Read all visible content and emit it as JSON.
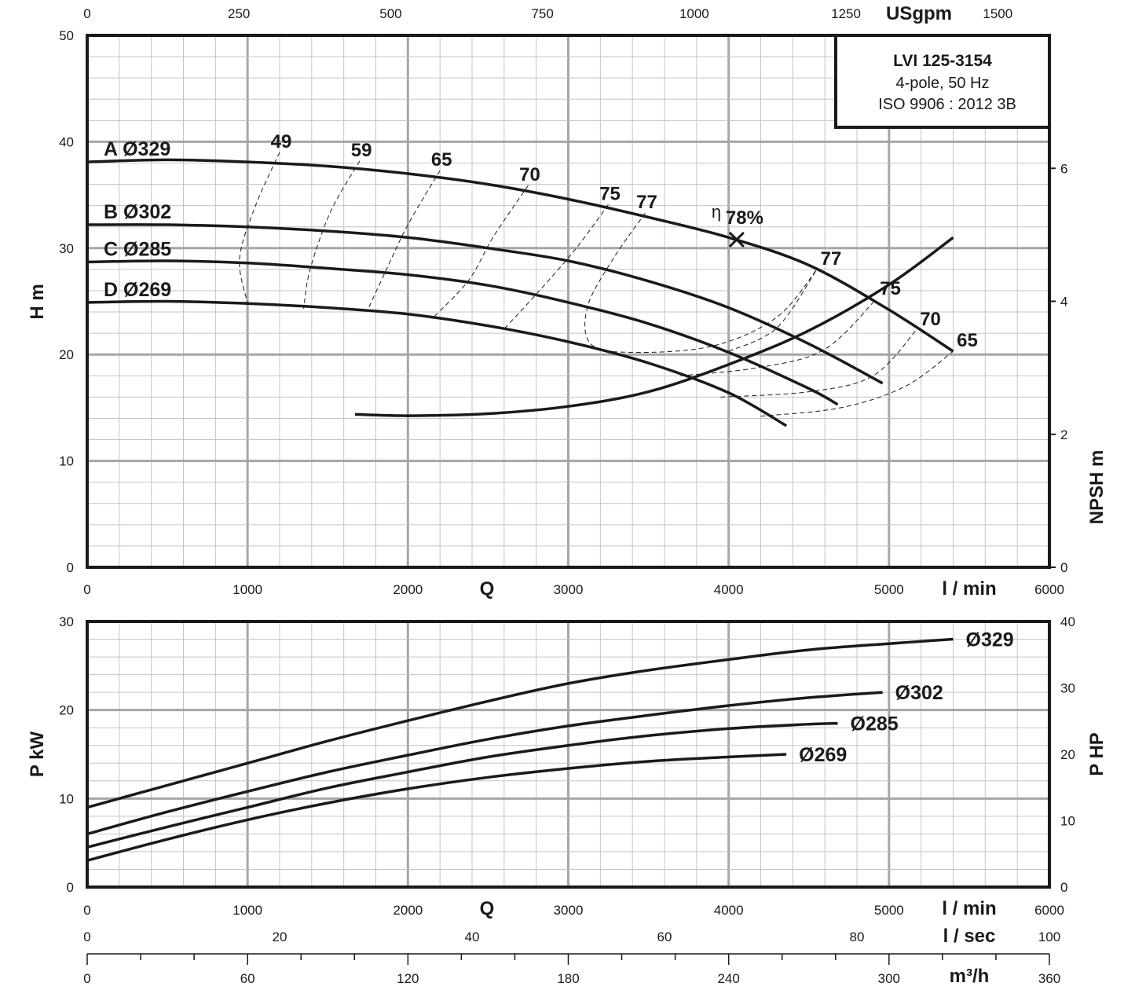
{
  "model": {
    "title": "LVI 125-3154",
    "line1": "4-pole, 50 Hz",
    "line2": "ISO 9906 : 2012 3B"
  },
  "colors": {
    "ink": "#1a1a1a",
    "major_grid": "#a6a6a6",
    "minor_grid": "#c4c4c4"
  },
  "chart_data": [
    {
      "type": "line",
      "name": "head",
      "xlabel": "Q",
      "xunit": "l / min",
      "x_range": [
        0,
        6000
      ],
      "ylabel": "H m",
      "y_range": [
        0,
        50
      ],
      "y2label": "NPSH m",
      "y2_range": [
        0,
        8
      ],
      "y2_ticks": [
        0,
        2,
        4,
        6
      ],
      "top_axis": {
        "unit": "USgpm",
        "ticks": [
          0,
          250,
          500,
          750,
          1000,
          1250,
          1500
        ]
      },
      "x_ticks": [
        0,
        1000,
        2000,
        3000,
        4000,
        5000,
        6000
      ],
      "y_ticks": [
        0,
        10,
        20,
        30,
        40,
        50
      ],
      "series": [
        {
          "name": "A Ø329",
          "x": [
            0,
            500,
            1000,
            1500,
            2000,
            2500,
            3000,
            3500,
            4000,
            4500,
            5000,
            5400
          ],
          "y": [
            38.1,
            38.3,
            38.1,
            37.7,
            37.0,
            36.0,
            34.6,
            32.9,
            31.0,
            28.4,
            24.2,
            20.3
          ]
        },
        {
          "name": "B Ø302",
          "x": [
            0,
            500,
            1000,
            1500,
            2000,
            2500,
            3000,
            3500,
            4000,
            4500,
            4960
          ],
          "y": [
            32.2,
            32.2,
            32.0,
            31.6,
            31.0,
            30.0,
            28.8,
            26.9,
            24.4,
            21.0,
            17.3
          ]
        },
        {
          "name": "C Ø285",
          "x": [
            0,
            500,
            1000,
            1500,
            2000,
            2500,
            3000,
            3500,
            4000,
            4500,
            4680
          ],
          "y": [
            28.7,
            28.8,
            28.6,
            28.1,
            27.5,
            26.5,
            24.9,
            22.9,
            20.2,
            16.8,
            15.3
          ]
        },
        {
          "name": "D Ø269",
          "x": [
            0,
            500,
            1000,
            1500,
            2000,
            2500,
            3000,
            3500,
            4000,
            4360
          ],
          "y": [
            24.9,
            25.0,
            24.8,
            24.4,
            23.8,
            22.7,
            21.2,
            19.2,
            16.4,
            13.3
          ]
        }
      ],
      "npsh": {
        "x": [
          1670,
          2000,
          2500,
          3000,
          3500,
          4000,
          4500,
          5000,
          5400
        ],
        "y": [
          2.3,
          2.28,
          2.31,
          2.42,
          2.64,
          3.05,
          3.56,
          4.25,
          4.96
        ]
      },
      "efficiency": {
        "symbol": "η",
        "best": {
          "label": "78%",
          "x": 4050,
          "y": 30.8
        },
        "contours": [
          {
            "label": "49",
            "x": [
              1200,
              1050,
              950,
              1000
            ],
            "y": [
              39.0,
              34.0,
              29.0,
              24.8
            ]
          },
          {
            "label": "59",
            "x": [
              1700,
              1520,
              1390,
              1350
            ],
            "y": [
              38.2,
              33.5,
              28.0,
              24.3
            ]
          },
          {
            "label": "65",
            "x": [
              2200,
              2000,
              1860,
              1750
            ],
            "y": [
              37.3,
              32.2,
              27.8,
              24.2
            ]
          },
          {
            "label": "70",
            "x": [
              2750,
              2530,
              2380,
              2160
            ],
            "y": [
              35.9,
              31.0,
              27.0,
              23.5
            ]
          },
          {
            "label": "75",
            "x": [
              3250,
              3050,
              2820,
              2600
            ],
            "y": [
              34.1,
              30.0,
              26.0,
              22.4
            ]
          },
          {
            "label": "77",
            "x": [
              3480,
              3280,
              3120,
              3140,
              3400,
              3900,
              4300,
              4550
            ],
            "y": [
              33.3,
              29.0,
              24.5,
              21.0,
              20.2,
              20.8,
              23.5,
              28.0
            ]
          }
        ],
        "right_labels": [
          {
            "label": "77",
            "x": 4550,
            "y": 28.0
          },
          {
            "label": "75",
            "x": 4920,
            "y": 25.2
          },
          {
            "label": "70",
            "x": 5170,
            "y": 22.3
          },
          {
            "label": "65",
            "x": 5400,
            "y": 20.3
          }
        ],
        "right_lines": [
          {
            "x": [
              4000,
              4300,
              4550
            ],
            "y": [
              20.3,
              22.5,
              28.0
            ]
          },
          {
            "x": [
              3700,
              4200,
              4600,
              4920
            ],
            "y": [
              18.0,
              18.8,
              20.5,
              25.2
            ]
          },
          {
            "x": [
              3950,
              4500,
              4900,
              5170
            ],
            "y": [
              16.0,
              16.5,
              18.0,
              22.3
            ]
          },
          {
            "x": [
              4200,
              4700,
              5100,
              5400
            ],
            "y": [
              14.2,
              15.0,
              17.0,
              20.3
            ]
          }
        ]
      }
    },
    {
      "type": "line",
      "name": "power",
      "xlabel": "Q",
      "xunit": "l / min",
      "x_range": [
        0,
        6000
      ],
      "x_ticks": [
        0,
        1000,
        2000,
        3000,
        4000,
        5000,
        6000
      ],
      "ylabel": "P kW",
      "y_range": [
        0,
        30
      ],
      "y_ticks": [
        0,
        10,
        20,
        30
      ],
      "y2label": "P HP",
      "y2_range": [
        0,
        40
      ],
      "y2_ticks": [
        0,
        10,
        20,
        30,
        40
      ],
      "series": [
        {
          "name": "Ø329",
          "x": [
            0,
            500,
            1000,
            1500,
            2000,
            2500,
            3000,
            3500,
            4000,
            4500,
            5000,
            5400
          ],
          "y": [
            9.0,
            11.5,
            14.0,
            16.5,
            18.8,
            21.0,
            23.0,
            24.5,
            25.7,
            26.8,
            27.5,
            28.0
          ]
        },
        {
          "name": "Ø302",
          "x": [
            0,
            500,
            1000,
            1500,
            2000,
            2500,
            3000,
            3500,
            4000,
            4500,
            4960
          ],
          "y": [
            6.0,
            8.5,
            10.8,
            13.0,
            14.9,
            16.7,
            18.2,
            19.4,
            20.5,
            21.4,
            22.0
          ]
        },
        {
          "name": "Ø285",
          "x": [
            0,
            500,
            1000,
            1500,
            2000,
            2500,
            3000,
            3500,
            4000,
            4500,
            4680
          ],
          "y": [
            4.5,
            6.8,
            9.0,
            11.2,
            13.0,
            14.7,
            16.0,
            17.1,
            17.9,
            18.4,
            18.5
          ]
        },
        {
          "name": "Ø269",
          "x": [
            0,
            500,
            1000,
            1500,
            2000,
            2500,
            3000,
            3500,
            4000,
            4360
          ],
          "y": [
            3.0,
            5.4,
            7.6,
            9.5,
            11.1,
            12.4,
            13.4,
            14.2,
            14.7,
            15.0
          ]
        }
      ]
    }
  ],
  "extra_axes": {
    "lsec": {
      "unit": "l / sec",
      "ticks": [
        0,
        20,
        40,
        60,
        80,
        100
      ]
    },
    "m3h": {
      "unit": "m³/h",
      "ticks": [
        0,
        60,
        120,
        180,
        240,
        300,
        360
      ]
    }
  }
}
